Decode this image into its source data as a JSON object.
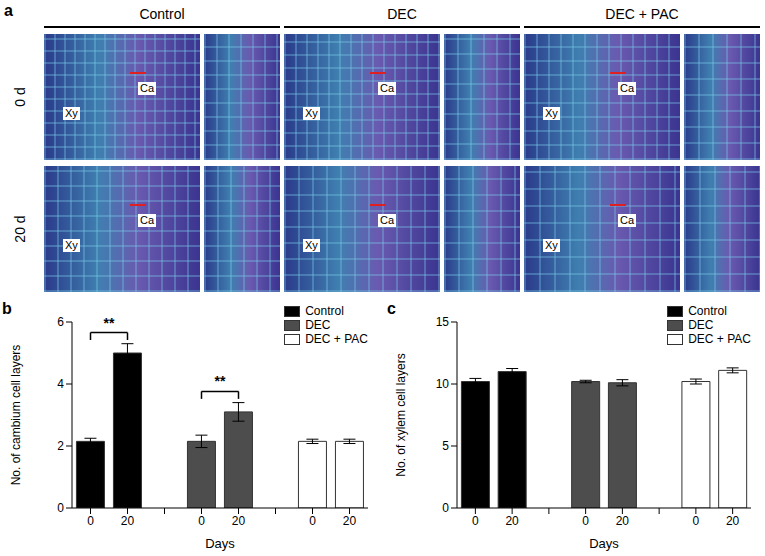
{
  "panel_a": {
    "letter": "a",
    "columns": [
      "Control",
      "DEC",
      "DEC + PAC"
    ],
    "rows": [
      "0 d",
      "20 d"
    ],
    "image_labels": [
      "Xy",
      "Ca"
    ]
  },
  "chart_data": [
    {
      "letter": "b",
      "type": "bar",
      "categories": [
        "0",
        "20",
        null,
        "0",
        "20",
        null,
        "0",
        "20"
      ],
      "x_label": "Days",
      "y_label": "No. of cambium cell layers",
      "ylim": [
        0,
        6
      ],
      "yticks": [
        0,
        2,
        4,
        6
      ],
      "legend": "upper right",
      "series": [
        {
          "name": "Control",
          "color": "#000000",
          "values": [
            2.15,
            5.0,
            null,
            null,
            null,
            null,
            null,
            null
          ],
          "errors": [
            0.1,
            0.3,
            null,
            null,
            null,
            null,
            null,
            null
          ]
        },
        {
          "name": "DEC",
          "color": "#4d4d4d",
          "values": [
            null,
            null,
            null,
            2.15,
            3.1,
            null,
            null,
            null
          ],
          "errors": [
            null,
            null,
            null,
            0.2,
            0.3,
            null,
            null,
            null
          ]
        },
        {
          "name": "DEC + PAC",
          "color": "#ffffff",
          "values": [
            null,
            null,
            null,
            null,
            null,
            null,
            2.15,
            2.15
          ],
          "errors": [
            null,
            null,
            null,
            null,
            null,
            null,
            0.07,
            0.07
          ]
        }
      ],
      "annotations": [
        {
          "text": "**",
          "between": [
            0,
            1
          ]
        },
        {
          "text": "**",
          "between": [
            3,
            4
          ]
        }
      ]
    },
    {
      "letter": "c",
      "type": "bar",
      "categories": [
        "0",
        "20",
        null,
        "0",
        "20",
        null,
        "0",
        "20"
      ],
      "x_label": "Days",
      "y_label": "No. of xylem cell layers",
      "ylim": [
        0,
        15
      ],
      "yticks": [
        0,
        5,
        10,
        15
      ],
      "legend": "upper right",
      "series": [
        {
          "name": "Control",
          "color": "#000000",
          "values": [
            10.2,
            11.0,
            null,
            null,
            null,
            null,
            null,
            null
          ],
          "errors": [
            0.25,
            0.25,
            null,
            null,
            null,
            null,
            null,
            null
          ]
        },
        {
          "name": "DEC",
          "color": "#4d4d4d",
          "values": [
            null,
            null,
            null,
            10.2,
            10.1,
            null,
            null,
            null
          ],
          "errors": [
            null,
            null,
            null,
            0.1,
            0.25,
            null,
            null,
            null
          ]
        },
        {
          "name": "DEC + PAC",
          "color": "#ffffff",
          "values": [
            null,
            null,
            null,
            null,
            null,
            null,
            10.2,
            11.1
          ],
          "errors": [
            null,
            null,
            null,
            null,
            null,
            null,
            0.2,
            0.2
          ]
        }
      ],
      "annotations": []
    }
  ]
}
